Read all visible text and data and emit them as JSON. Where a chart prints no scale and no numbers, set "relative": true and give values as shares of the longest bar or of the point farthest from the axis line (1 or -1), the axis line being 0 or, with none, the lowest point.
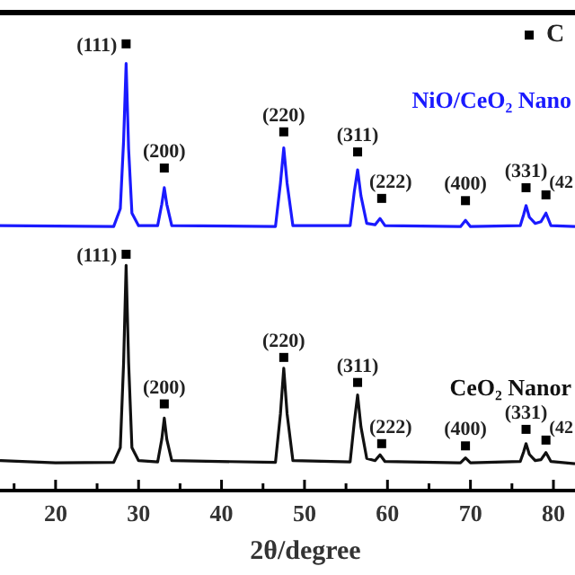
{
  "chart_data": {
    "type": "line",
    "relative": true,
    "xlabel": "2θ/degree",
    "xlim": [
      13.3,
      82.6
    ],
    "xticks": [
      {
        "value": 15,
        "label": null
      },
      20,
      {
        "value": 25,
        "label": null
      },
      30,
      {
        "value": 35,
        "label": null
      },
      40,
      {
        "value": 45,
        "label": null
      },
      50,
      {
        "value": 55,
        "label": null
      },
      60,
      {
        "value": 65,
        "label": null
      },
      70,
      {
        "value": 75,
        "label": null
      },
      80
    ],
    "legend": "top right",
    "marker": "none",
    "line_style": "solid",
    "series": [
      {
        "name": "NiO/CeO₂ Nano",
        "color": "#1a1aff",
        "x": [
          13.3,
          27,
          27.8,
          28.2,
          28.5,
          28.8,
          29.2,
          30,
          32.3,
          32.8,
          33.1,
          33.4,
          34,
          46.5,
          47.1,
          47.5,
          47.9,
          48.6,
          55.5,
          56.0,
          56.4,
          56.8,
          57.5,
          58.5,
          59.1,
          59.7,
          68.8,
          69.4,
          70,
          76,
          76.4,
          76.7,
          77.1,
          77.8,
          78.5,
          79.1,
          79.7,
          82.6
        ],
        "values": [
          0.593,
          0.591,
          0.631,
          0.784,
          0.956,
          0.765,
          0.621,
          0.593,
          0.593,
          0.641,
          0.678,
          0.641,
          0.593,
          0.591,
          0.688,
          0.767,
          0.688,
          0.593,
          0.593,
          0.669,
          0.718,
          0.66,
          0.598,
          0.595,
          0.609,
          0.593,
          0.591,
          0.605,
          0.591,
          0.593,
          0.617,
          0.638,
          0.612,
          0.598,
          0.602,
          0.621,
          0.593,
          0.591
        ]
      },
      {
        "name": "CeO₂ Nanor",
        "color": "#111111",
        "x": [
          13.3,
          20,
          27,
          27.8,
          28.2,
          28.5,
          28.8,
          29.2,
          30,
          32.3,
          32.8,
          33.1,
          33.4,
          34,
          46.5,
          47.1,
          47.5,
          47.9,
          48.6,
          55.5,
          56.0,
          56.4,
          56.8,
          57.5,
          58.5,
          59.1,
          59.7,
          68.8,
          69.4,
          70.0,
          76.0,
          76.4,
          76.7,
          77.1,
          77.8,
          78.5,
          79.1,
          79.7,
          82.6
        ],
        "values": [
          0.067,
          0.062,
          0.063,
          0.096,
          0.287,
          0.504,
          0.287,
          0.096,
          0.067,
          0.064,
          0.115,
          0.162,
          0.115,
          0.067,
          0.063,
          0.172,
          0.274,
          0.172,
          0.067,
          0.064,
          0.153,
          0.214,
          0.143,
          0.072,
          0.067,
          0.08,
          0.065,
          0.062,
          0.073,
          0.062,
          0.065,
          0.086,
          0.105,
          0.081,
          0.067,
          0.069,
          0.085,
          0.065,
          0.06
        ]
      },
      {
        "name": "C",
        "type": "scatter",
        "marker": "square",
        "color": "#000000",
        "x": [
          28.5,
          33.1,
          47.5,
          56.4,
          59.3,
          69.4,
          76.7,
          79.1,
          28.5,
          33.1,
          47.5,
          56.4,
          59.3,
          69.4,
          76.7,
          79.1
        ],
        "values": [
          1,
          0.722,
          0.803,
          0.758,
          0.654,
          0.649,
          0.678,
          0.662,
          0.529,
          0.194,
          0.298,
          0.242,
          0.105,
          0.1,
          0.137,
          0.113
        ]
      }
    ],
    "annotations": [
      {
        "text": "(111)",
        "x": 28.5,
        "y": 1
      },
      {
        "text": "(200)",
        "x": 33.1,
        "y": 0.722
      },
      {
        "text": "(220)",
        "x": 47.5,
        "y": 0.803
      },
      {
        "text": "(311)",
        "x": 56.4,
        "y": 0.758
      },
      {
        "text": "(222)",
        "x": 59.3,
        "y": 0.654
      },
      {
        "text": "(400)",
        "x": 69.4,
        "y": 0.649
      },
      {
        "text": "(331)",
        "x": 76.7,
        "y": 0.678
      },
      {
        "text": "(42",
        "x": 79.1,
        "y": 0.662
      },
      {
        "text": "(111)",
        "x": 28.5,
        "y": 0.529
      },
      {
        "text": "(200)",
        "x": 33.1,
        "y": 0.194
      },
      {
        "text": "(220)",
        "x": 47.5,
        "y": 0.298
      },
      {
        "text": "(311)",
        "x": 56.4,
        "y": 0.242
      },
      {
        "text": "(222)",
        "x": 59.3,
        "y": 0.105
      },
      {
        "text": "(400)",
        "x": 69.4,
        "y": 0.1
      },
      {
        "text": "(331)",
        "x": 76.7,
        "y": 0.137
      },
      {
        "text": "(42",
        "x": 79.1,
        "y": 0.113
      }
    ]
  }
}
